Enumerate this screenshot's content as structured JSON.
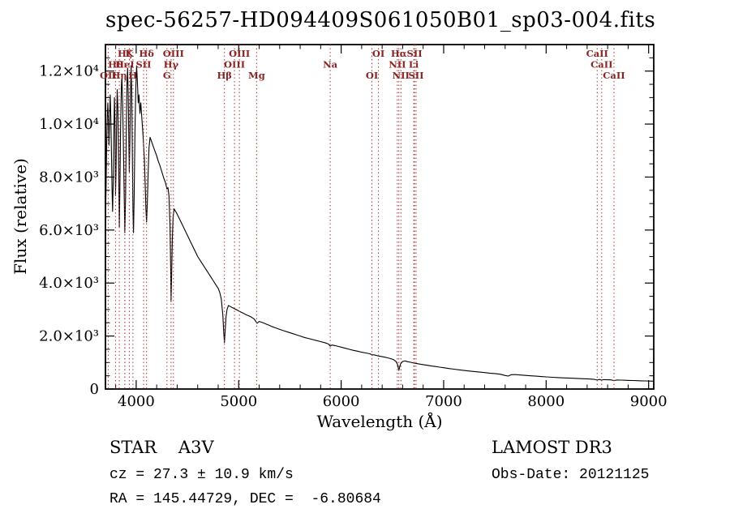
{
  "title": "spec-56257-HD094409S061050B01_sp03-004.fits",
  "chart_data": {
    "type": "line",
    "title": "spec-56257-HD094409S061050B01_sp03-004.fits",
    "xlabel": "Wavelength (Å)",
    "ylabel": "Flux (relative)",
    "xlim": [
      3700,
      9050
    ],
    "ylim": [
      0,
      13000
    ],
    "x_ticks": [
      4000,
      5000,
      6000,
      7000,
      8000,
      9000
    ],
    "x_minor_step": 200,
    "y_ticks": [
      0,
      2000,
      4000,
      6000,
      8000,
      10000,
      12000
    ],
    "y_tick_labels": [
      "0",
      "2.0×10³",
      "4.0×10³",
      "6.0×10³",
      "8.0×10³",
      "1.0×10⁴",
      "1.2×10⁴"
    ],
    "y_minor_step": 500,
    "grid": false,
    "line_color": "#000000",
    "marker_line_color": "#ab3535",
    "marker_label_color": "#8b2323",
    "line_markers": [
      {
        "label": "Hζ",
        "wavelength": 3889,
        "row": 0
      },
      {
        "label": "K",
        "wavelength": 3933,
        "row": 0
      },
      {
        "label": "Hδ",
        "wavelength": 4101,
        "row": 0
      },
      {
        "label": "OIII",
        "wavelength": 4363,
        "row": 0
      },
      {
        "label": "OIII",
        "wavelength": 5007,
        "row": 0
      },
      {
        "label": "OI",
        "wavelength": 6364,
        "row": 0
      },
      {
        "label": "Hα",
        "wavelength": 6563,
        "row": 0
      },
      {
        "label": "SII",
        "wavelength": 6716,
        "row": 0
      },
      {
        "label": "CaII",
        "wavelength": 8498,
        "row": 0
      },
      {
        "label": "Hθ",
        "wavelength": 3798,
        "row": 1
      },
      {
        "label": "HeI",
        "wavelength": 3889,
        "row": 1
      },
      {
        "label": "SII",
        "wavelength": 4072,
        "row": 1
      },
      {
        "label": "Hγ",
        "wavelength": 4340,
        "row": 1
      },
      {
        "label": "OIII",
        "wavelength": 4959,
        "row": 1
      },
      {
        "label": "Na",
        "wavelength": 5893,
        "row": 1
      },
      {
        "label": "NII",
        "wavelength": 6548,
        "row": 1
      },
      {
        "label": "Li",
        "wavelength": 6708,
        "row": 1
      },
      {
        "label": "CaII",
        "wavelength": 8542,
        "row": 1
      },
      {
        "label": "OII",
        "wavelength": 3727,
        "row": 2
      },
      {
        "label": "Hη",
        "wavelength": 3835,
        "row": 2
      },
      {
        "label": "H",
        "wavelength": 3968,
        "row": 2
      },
      {
        "label": "G",
        "wavelength": 4300,
        "row": 2
      },
      {
        "label": "Hβ",
        "wavelength": 4861,
        "row": 2
      },
      {
        "label": "Mg",
        "wavelength": 5175,
        "row": 2
      },
      {
        "label": "OI",
        "wavelength": 6300,
        "row": 2
      },
      {
        "label": "NII",
        "wavelength": 6583,
        "row": 2
      },
      {
        "label": "SII",
        "wavelength": 6731,
        "row": 2
      },
      {
        "label": "CaII",
        "wavelength": 8662,
        "row": 2
      }
    ],
    "spectrum": [
      [
        3700,
        6200
      ],
      [
        3706,
        7600
      ],
      [
        3712,
        9200
      ],
      [
        3718,
        10300
      ],
      [
        3724,
        10800
      ],
      [
        3729,
        10100
      ],
      [
        3735,
        9200
      ],
      [
        3741,
        10400
      ],
      [
        3747,
        11100
      ],
      [
        3752,
        10300
      ],
      [
        3758,
        9100
      ],
      [
        3764,
        7600
      ],
      [
        3770,
        6700
      ],
      [
        3776,
        7800
      ],
      [
        3782,
        9800
      ],
      [
        3788,
        11000
      ],
      [
        3793,
        9900
      ],
      [
        3798,
        7300
      ],
      [
        3803,
        8100
      ],
      [
        3809,
        10200
      ],
      [
        3815,
        11300
      ],
      [
        3821,
        10600
      ],
      [
        3828,
        8700
      ],
      [
        3835,
        6100
      ],
      [
        3841,
        7500
      ],
      [
        3848,
        9900
      ],
      [
        3855,
        11400
      ],
      [
        3861,
        11800
      ],
      [
        3868,
        10800
      ],
      [
        3875,
        9300
      ],
      [
        3882,
        7500
      ],
      [
        3889,
        5900
      ],
      [
        3896,
        7200
      ],
      [
        3903,
        9700
      ],
      [
        3910,
        11500
      ],
      [
        3916,
        12100
      ],
      [
        3922,
        11100
      ],
      [
        3928,
        9500
      ],
      [
        3933,
        8200
      ],
      [
        3938,
        9300
      ],
      [
        3944,
        10900
      ],
      [
        3950,
        12200
      ],
      [
        3956,
        11300
      ],
      [
        3962,
        9100
      ],
      [
        3968,
        6700
      ],
      [
        3974,
        5900
      ],
      [
        3980,
        7300
      ],
      [
        3988,
        9700
      ],
      [
        3996,
        11300
      ],
      [
        4004,
        12200
      ],
      [
        4012,
        11600
      ],
      [
        4020,
        10800
      ],
      [
        4028,
        11100
      ],
      [
        4036,
        10400
      ],
      [
        4045,
        10800
      ],
      [
        4055,
        10200
      ],
      [
        4065,
        9700
      ],
      [
        4072,
        9200
      ],
      [
        4080,
        8700
      ],
      [
        4088,
        7700
      ],
      [
        4095,
        6800
      ],
      [
        4101,
        6300
      ],
      [
        4108,
        7000
      ],
      [
        4116,
        8100
      ],
      [
        4125,
        9100
      ],
      [
        4135,
        9500
      ],
      [
        4145,
        9400
      ],
      [
        4158,
        9250
      ],
      [
        4172,
        9100
      ],
      [
        4186,
        8950
      ],
      [
        4200,
        8800
      ],
      [
        4215,
        8600
      ],
      [
        4230,
        8450
      ],
      [
        4250,
        8200
      ],
      [
        4270,
        7950
      ],
      [
        4285,
        7800
      ],
      [
        4300,
        7550
      ],
      [
        4310,
        7600
      ],
      [
        4320,
        7300
      ],
      [
        4330,
        6200
      ],
      [
        4336,
        4600
      ],
      [
        4340,
        3300
      ],
      [
        4345,
        4200
      ],
      [
        4352,
        5600
      ],
      [
        4360,
        6500
      ],
      [
        4370,
        6800
      ],
      [
        4385,
        6700
      ],
      [
        4400,
        6600
      ],
      [
        4425,
        6400
      ],
      [
        4450,
        6200
      ],
      [
        4475,
        6000
      ],
      [
        4500,
        5800
      ],
      [
        4525,
        5600
      ],
      [
        4550,
        5400
      ],
      [
        4575,
        5200
      ],
      [
        4600,
        5000
      ],
      [
        4625,
        4850
      ],
      [
        4650,
        4700
      ],
      [
        4675,
        4550
      ],
      [
        4700,
        4400
      ],
      [
        4725,
        4250
      ],
      [
        4750,
        4100
      ],
      [
        4775,
        3950
      ],
      [
        4800,
        3800
      ],
      [
        4815,
        3650
      ],
      [
        4830,
        3400
      ],
      [
        4845,
        2800
      ],
      [
        4855,
        2100
      ],
      [
        4861,
        1750
      ],
      [
        4868,
        2200
      ],
      [
        4876,
        2700
      ],
      [
        4886,
        3000
      ],
      [
        4900,
        3150
      ],
      [
        4925,
        3100
      ],
      [
        4950,
        3050
      ],
      [
        4975,
        3000
      ],
      [
        5000,
        2950
      ],
      [
        5025,
        2900
      ],
      [
        5050,
        2850
      ],
      [
        5075,
        2800
      ],
      [
        5100,
        2760
      ],
      [
        5125,
        2710
      ],
      [
        5150,
        2650
      ],
      [
        5167,
        2550
      ],
      [
        5180,
        2480
      ],
      [
        5200,
        2550
      ],
      [
        5225,
        2520
      ],
      [
        5250,
        2480
      ],
      [
        5275,
        2440
      ],
      [
        5300,
        2400
      ],
      [
        5330,
        2350
      ],
      [
        5360,
        2310
      ],
      [
        5400,
        2250
      ],
      [
        5440,
        2200
      ],
      [
        5480,
        2150
      ],
      [
        5520,
        2100
      ],
      [
        5560,
        2050
      ],
      [
        5600,
        2000
      ],
      [
        5640,
        1950
      ],
      [
        5680,
        1910
      ],
      [
        5720,
        1870
      ],
      [
        5760,
        1830
      ],
      [
        5800,
        1790
      ],
      [
        5840,
        1750
      ],
      [
        5875,
        1700
      ],
      [
        5893,
        1620
      ],
      [
        5910,
        1660
      ],
      [
        5940,
        1640
      ],
      [
        5970,
        1610
      ],
      [
        6000,
        1580
      ],
      [
        6040,
        1540
      ],
      [
        6080,
        1500
      ],
      [
        6120,
        1460
      ],
      [
        6160,
        1430
      ],
      [
        6200,
        1390
      ],
      [
        6240,
        1360
      ],
      [
        6280,
        1330
      ],
      [
        6300,
        1290
      ],
      [
        6320,
        1290
      ],
      [
        6360,
        1250
      ],
      [
        6400,
        1220
      ],
      [
        6440,
        1190
      ],
      [
        6480,
        1150
      ],
      [
        6510,
        1110
      ],
      [
        6535,
        1040
      ],
      [
        6550,
        930
      ],
      [
        6558,
        790
      ],
      [
        6563,
        700
      ],
      [
        6570,
        810
      ],
      [
        6580,
        950
      ],
      [
        6600,
        1040
      ],
      [
        6625,
        1060
      ],
      [
        6650,
        1030
      ],
      [
        6680,
        1010
      ],
      [
        6710,
        980
      ],
      [
        6740,
        960
      ],
      [
        6770,
        940
      ],
      [
        6800,
        920
      ],
      [
        6840,
        895
      ],
      [
        6880,
        870
      ],
      [
        6920,
        850
      ],
      [
        6960,
        825
      ],
      [
        7000,
        805
      ],
      [
        7050,
        775
      ],
      [
        7100,
        750
      ],
      [
        7150,
        725
      ],
      [
        7200,
        700
      ],
      [
        7250,
        680
      ],
      [
        7300,
        660
      ],
      [
        7350,
        640
      ],
      [
        7400,
        620
      ],
      [
        7450,
        600
      ],
      [
        7500,
        585
      ],
      [
        7550,
        560
      ],
      [
        7600,
        510
      ],
      [
        7630,
        490
      ],
      [
        7660,
        540
      ],
      [
        7700,
        545
      ],
      [
        7750,
        530
      ],
      [
        7800,
        515
      ],
      [
        7850,
        500
      ],
      [
        7900,
        485
      ],
      [
        7950,
        470
      ],
      [
        8000,
        460
      ],
      [
        8060,
        445
      ],
      [
        8120,
        430
      ],
      [
        8180,
        420
      ],
      [
        8240,
        410
      ],
      [
        8300,
        400
      ],
      [
        8360,
        390
      ],
      [
        8420,
        380
      ],
      [
        8470,
        365
      ],
      [
        8498,
        340
      ],
      [
        8520,
        360
      ],
      [
        8542,
        335
      ],
      [
        8560,
        355
      ],
      [
        8600,
        350
      ],
      [
        8630,
        345
      ],
      [
        8662,
        320
      ],
      [
        8690,
        340
      ],
      [
        8730,
        335
      ],
      [
        8770,
        330
      ],
      [
        8810,
        325
      ],
      [
        8850,
        320
      ],
      [
        8890,
        315
      ],
      [
        8930,
        310
      ],
      [
        8970,
        305
      ],
      [
        9010,
        300
      ],
      [
        9050,
        298
      ]
    ]
  },
  "footer": {
    "left": {
      "line1": "STAR    A3V",
      "line2": "cz = 27.3 ± 10.9 km/s",
      "line3": "RA = 145.44729, DEC =  -6.80684"
    },
    "right": {
      "line1": "LAMOST DR3",
      "line2": "Obs-Date: 20121125"
    }
  }
}
